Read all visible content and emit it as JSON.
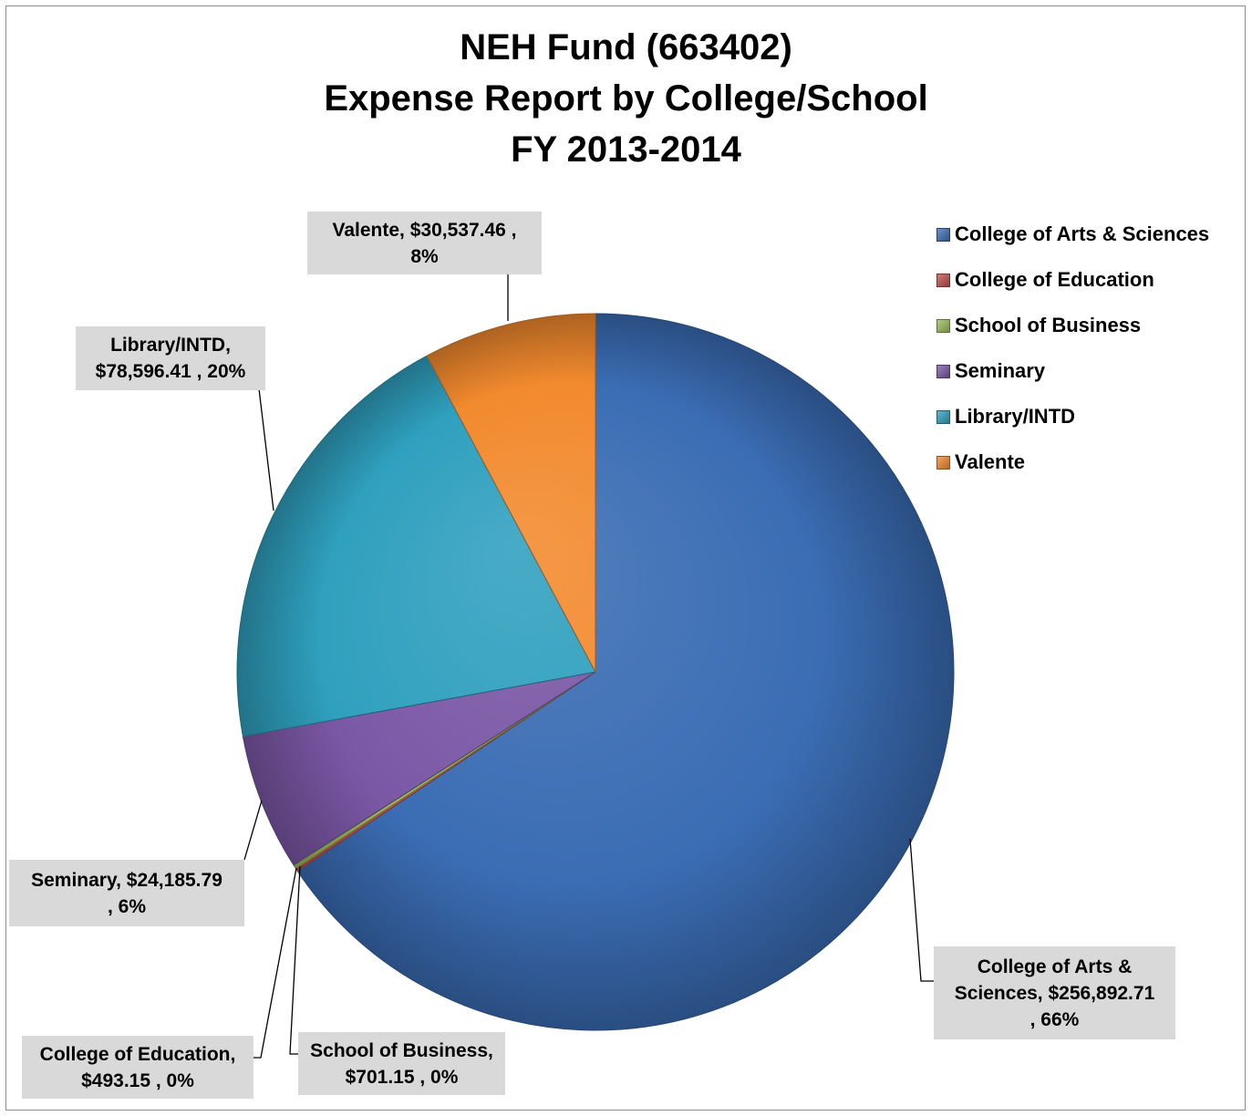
{
  "chart_data": {
    "type": "pie",
    "title": [
      "NEH Fund (663402)",
      "Expense Report by College/School",
      "FY 2013-2014"
    ],
    "legend_position": "right",
    "slices": [
      {
        "name": "College of Arts & Sciences",
        "value": 256892.71,
        "percent": "66%",
        "color": "#3b6db4",
        "label_lines": [
          "College of Arts &",
          "Sciences,  $256,892.71",
          ", 66%"
        ]
      },
      {
        "name": "College of Education",
        "value": 493.15,
        "percent": "0%",
        "color": "#c0504d",
        "label_lines": [
          "College of Education,",
          "$493.15 , 0%"
        ]
      },
      {
        "name": "School of Business",
        "value": 701.15,
        "percent": "0%",
        "color": "#9bbb59",
        "label_lines": [
          "School of Business,",
          "$701.15 , 0%"
        ]
      },
      {
        "name": "Seminary",
        "value": 24185.79,
        "percent": "6%",
        "color": "#7b58a6",
        "label_lines": [
          "Seminary,  $24,185.79",
          ", 6%"
        ]
      },
      {
        "name": "Library/INTD",
        "value": 78596.41,
        "percent": "20%",
        "color": "#2fa0be",
        "label_lines": [
          "Library/INTD,",
          "$78,596.41 , 20%"
        ]
      },
      {
        "name": "Valente",
        "value": 30537.46,
        "percent": "8%",
        "color": "#f28a2e",
        "label_lines": [
          "Valente,  $30,537.46 ,",
          "8%"
        ]
      }
    ]
  }
}
